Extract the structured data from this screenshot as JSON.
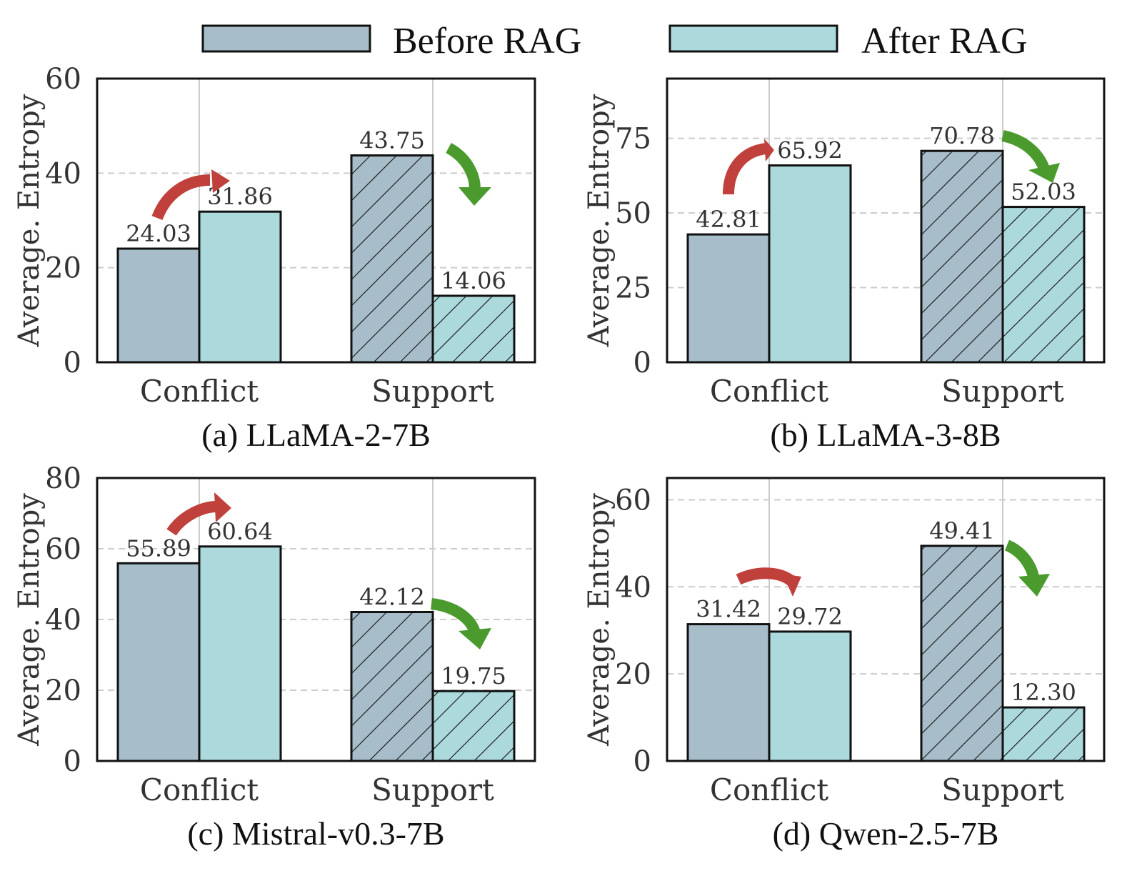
{
  "legend": {
    "before_label": "Before RAG",
    "after_label": "After RAG",
    "before_color": "#a7bdc9",
    "after_color": "#acd9dc"
  },
  "colors": {
    "up_arrow": "#c0413b",
    "down_arrow": "#4a9a2e",
    "edge": "#111111",
    "grid": "#cccccc"
  },
  "chart_data": [
    {
      "type": "bar",
      "title": "(a) LLaMA-2-7B",
      "ylabel": "Average.  Entropy",
      "xlabel": "",
      "categories": [
        "Conflict",
        "Support"
      ],
      "ylim": [
        0,
        60
      ],
      "yticks": [
        0,
        20,
        40,
        60
      ],
      "series": [
        {
          "name": "Before RAG",
          "values": [
            24.03,
            43.75
          ]
        },
        {
          "name": "After RAG",
          "values": [
            31.86,
            14.06
          ]
        }
      ],
      "value_labels": [
        [
          "24.03",
          "43.75"
        ],
        [
          "31.86",
          "14.06"
        ]
      ],
      "grid": true
    },
    {
      "type": "bar",
      "title": "(b) LLaMA-3-8B",
      "ylabel": "Average.  Entropy",
      "xlabel": "",
      "categories": [
        "Conflict",
        "Support"
      ],
      "ylim": [
        0,
        95
      ],
      "yticks": [
        0,
        25,
        50,
        75
      ],
      "series": [
        {
          "name": "Before RAG",
          "values": [
            42.81,
            70.78
          ]
        },
        {
          "name": "After RAG",
          "values": [
            65.92,
            52.03
          ]
        }
      ],
      "value_labels": [
        [
          "42.81",
          "70.78"
        ],
        [
          "65.92",
          "52.03"
        ]
      ],
      "grid": true
    },
    {
      "type": "bar",
      "title": "(c) Mistral-v0.3-7B",
      "ylabel": "Average.  Entropy",
      "xlabel": "",
      "categories": [
        "Conflict",
        "Support"
      ],
      "ylim": [
        0,
        80
      ],
      "yticks": [
        0,
        20,
        40,
        60,
        80
      ],
      "series": [
        {
          "name": "Before RAG",
          "values": [
            55.89,
            42.12
          ]
        },
        {
          "name": "After RAG",
          "values": [
            60.64,
            19.75
          ]
        }
      ],
      "value_labels": [
        [
          "55.89",
          "42.12"
        ],
        [
          "60.64",
          "19.75"
        ]
      ],
      "grid": true
    },
    {
      "type": "bar",
      "title": "(d) Qwen-2.5-7B",
      "ylabel": "Average.  Entropy",
      "xlabel": "",
      "categories": [
        "Conflict",
        "Support"
      ],
      "ylim": [
        0,
        65
      ],
      "yticks": [
        0,
        20,
        40,
        60
      ],
      "series": [
        {
          "name": "Before RAG",
          "values": [
            31.42,
            49.41
          ]
        },
        {
          "name": "After RAG",
          "values": [
            29.72,
            12.3
          ]
        }
      ],
      "value_labels": [
        [
          "31.42",
          "49.41"
        ],
        [
          "29.72",
          "12.30"
        ]
      ],
      "grid": true
    }
  ]
}
